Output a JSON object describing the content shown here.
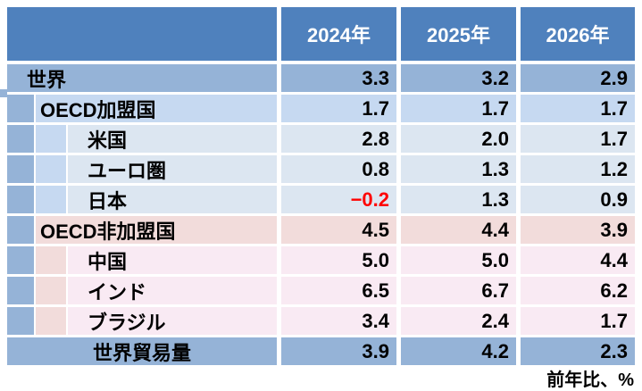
{
  "chart_data": {
    "type": "table",
    "columns": [
      "2024年",
      "2025年",
      "2026年"
    ],
    "rows": [
      {
        "label": "世界",
        "level": 0,
        "section": "world",
        "values": [
          "3.3",
          "3.2",
          "2.9"
        ]
      },
      {
        "label": "OECD加盟国",
        "level": 1,
        "section": "oecd",
        "values": [
          "1.7",
          "1.7",
          "1.7"
        ]
      },
      {
        "label": "米国",
        "level": 2,
        "section": "oecd",
        "values": [
          "2.8",
          "2.0",
          "1.7"
        ]
      },
      {
        "label": "ユーロ圏",
        "level": 2,
        "section": "oecd",
        "values": [
          "0.8",
          "1.3",
          "1.2"
        ]
      },
      {
        "label": "日本",
        "level": 2,
        "section": "oecd",
        "values": [
          "−0.2",
          "1.3",
          "0.9"
        ],
        "value_colors": [
          "#FF0000",
          null,
          null
        ]
      },
      {
        "label": "OECD非加盟国",
        "level": 1,
        "section": "nonoecd",
        "values": [
          "4.5",
          "4.4",
          "3.9"
        ]
      },
      {
        "label": "中国",
        "level": 2,
        "section": "nonoecd",
        "values": [
          "5.0",
          "5.0",
          "4.4"
        ]
      },
      {
        "label": "インド",
        "level": 2,
        "section": "nonoecd",
        "values": [
          "6.5",
          "6.7",
          "6.2"
        ]
      },
      {
        "label": "ブラジル",
        "level": 2,
        "section": "nonoecd",
        "values": [
          "3.4",
          "2.4",
          "1.7"
        ]
      },
      {
        "label": "世界貿易量",
        "level": 0,
        "section": "world",
        "values": [
          "3.9",
          "4.2",
          "2.3"
        ],
        "centered": true
      }
    ],
    "footnote": "前年比、%"
  },
  "colors": {
    "header_blue": "#4F81BD",
    "world_blue": "#95B3D7",
    "oecd_blue": "#C6D9F1",
    "oecd_light_blue": "#DCE6F1",
    "nonoecd_pink": "#F2DCDB",
    "nonoecd_light_pink": "#F9EAF3",
    "negative_red": "#FF0000",
    "header_text": "#FFFFFF",
    "body_text": "#000000"
  }
}
